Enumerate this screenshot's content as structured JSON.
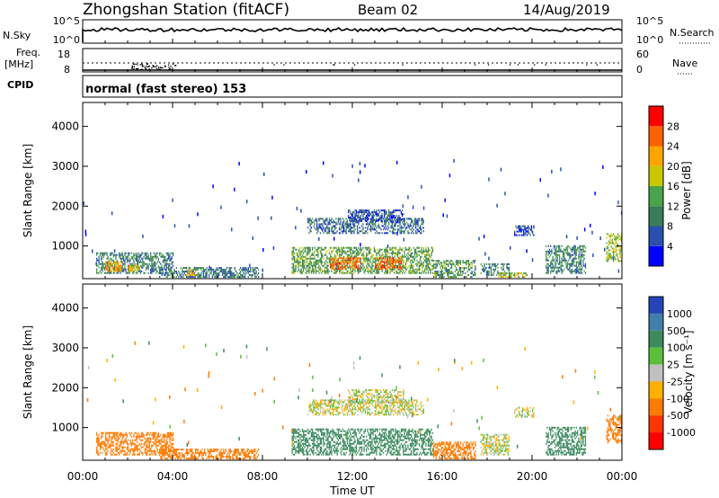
{
  "header": {
    "station": "Zhongshan Station (fitACF)",
    "beam": "Beam 02",
    "date": "14/Aug/2019"
  },
  "summary": {
    "left_labels": {
      "nsky": "N.Sky",
      "freq": "Freq.",
      "freq_unit": "[MHz]",
      "cpid": "CPID"
    },
    "right_labels": {
      "nsearch": "N.Search",
      "nave": "Nave"
    },
    "nsky_ticks": [
      "10^5",
      "10^0"
    ],
    "nsearch_ticks": [
      "10^5",
      "10^0"
    ],
    "freq_ticks": [
      "18",
      "8"
    ],
    "nave_ticks": [
      "60",
      "0"
    ],
    "cpid_text": "normal (fast stereo) 153"
  },
  "x_axis": {
    "label": "Time UT",
    "range_hours": [
      0,
      24
    ],
    "ticks": [
      "00:00",
      "04:00",
      "08:00",
      "12:00",
      "16:00",
      "20:00",
      "00:00"
    ]
  },
  "colors": {
    "power": [
      "#0000ff",
      "#2a4fae",
      "#3b7d57",
      "#4aa34a",
      "#c8c800",
      "#ffa500",
      "#ff6000",
      "#ff0000"
    ],
    "velocity": [
      "#2445b8",
      "#3f7fa8",
      "#3c8a5e",
      "#5bbf3a",
      "#c0c0c0",
      "#ffb000",
      "#ff7a00",
      "#ff3300",
      "#ff0000"
    ]
  },
  "chart_data": [
    {
      "type": "heatmap",
      "quantity": "power",
      "ylabel": "Slant Range [km]",
      "ylim": [
        180,
        4600
      ],
      "yticks": [
        1000,
        2000,
        3000,
        4000
      ],
      "colorbar": {
        "label": "Power [dB]",
        "ticks": [
          "28",
          "24",
          "20",
          "16",
          "12",
          "8",
          "4"
        ],
        "range": [
          0,
          32
        ]
      },
      "regions": [
        {
          "t": [
            0.6,
            4.0
          ],
          "r": [
            300,
            800
          ],
          "power": 10
        },
        {
          "t": [
            1.0,
            1.8
          ],
          "r": [
            350,
            600
          ],
          "power": 22
        },
        {
          "t": [
            2.0,
            2.5
          ],
          "r": [
            350,
            520
          ],
          "power": 20
        },
        {
          "t": [
            3.4,
            7.8
          ],
          "r": [
            200,
            450
          ],
          "power": 9
        },
        {
          "t": [
            4.6,
            5.0
          ],
          "r": [
            250,
            420
          ],
          "power": 20
        },
        {
          "t": [
            9.3,
            15.6
          ],
          "r": [
            300,
            950
          ],
          "power": 13
        },
        {
          "t": [
            11.0,
            12.4
          ],
          "r": [
            400,
            700
          ],
          "power": 26
        },
        {
          "t": [
            13.0,
            14.2
          ],
          "r": [
            400,
            700
          ],
          "power": 25
        },
        {
          "t": [
            10.0,
            15.2
          ],
          "r": [
            1300,
            1700
          ],
          "power": 8
        },
        {
          "t": [
            11.8,
            14.3
          ],
          "r": [
            1600,
            1900
          ],
          "power": 6
        },
        {
          "t": [
            15.6,
            17.5
          ],
          "r": [
            200,
            650
          ],
          "power": 12
        },
        {
          "t": [
            17.7,
            19.0
          ],
          "r": [
            250,
            550
          ],
          "power": 10
        },
        {
          "t": [
            18.5,
            19.8
          ],
          "r": [
            200,
            300
          ],
          "power": 18
        },
        {
          "t": [
            19.2,
            20.1
          ],
          "r": [
            1250,
            1500
          ],
          "power": 5
        },
        {
          "t": [
            20.6,
            22.4
          ],
          "r": [
            300,
            1000
          ],
          "power": 10
        },
        {
          "t": [
            23.3,
            24.0
          ],
          "r": [
            600,
            1300
          ],
          "power": 17
        }
      ]
    },
    {
      "type": "heatmap",
      "quantity": "velocity",
      "ylabel": "Slant Range [km]",
      "ylim": [
        180,
        4600
      ],
      "yticks": [
        1000,
        2000,
        3000,
        4000
      ],
      "colorbar": {
        "label": "Velocity [m s⁻¹]",
        "ticks": [
          "1000",
          "500",
          "100",
          "25",
          "-25",
          "-100",
          "-500",
          "-1000"
        ],
        "range": [
          -1200,
          1200
        ]
      },
      "regions": [
        {
          "t": [
            0.6,
            4.0
          ],
          "r": [
            300,
            850
          ],
          "velocity": -300
        },
        {
          "t": [
            3.4,
            7.8
          ],
          "r": [
            200,
            450
          ],
          "velocity": -250
        },
        {
          "t": [
            9.3,
            15.6
          ],
          "r": [
            300,
            950
          ],
          "velocity": 300
        },
        {
          "t": [
            10.0,
            15.2
          ],
          "r": [
            1300,
            1700
          ],
          "velocity": 0
        },
        {
          "t": [
            11.8,
            14.3
          ],
          "r": [
            1600,
            1950
          ],
          "velocity": 0
        },
        {
          "t": [
            15.6,
            17.5
          ],
          "r": [
            200,
            650
          ],
          "velocity": -300
        },
        {
          "t": [
            17.7,
            19.0
          ],
          "r": [
            300,
            800
          ],
          "velocity": 0
        },
        {
          "t": [
            19.2,
            20.1
          ],
          "r": [
            1250,
            1500
          ],
          "velocity": 0
        },
        {
          "t": [
            20.6,
            22.4
          ],
          "r": [
            300,
            1000
          ],
          "velocity": 200
        },
        {
          "t": [
            23.3,
            24.0
          ],
          "r": [
            600,
            1300
          ],
          "velocity": -400
        }
      ]
    }
  ]
}
